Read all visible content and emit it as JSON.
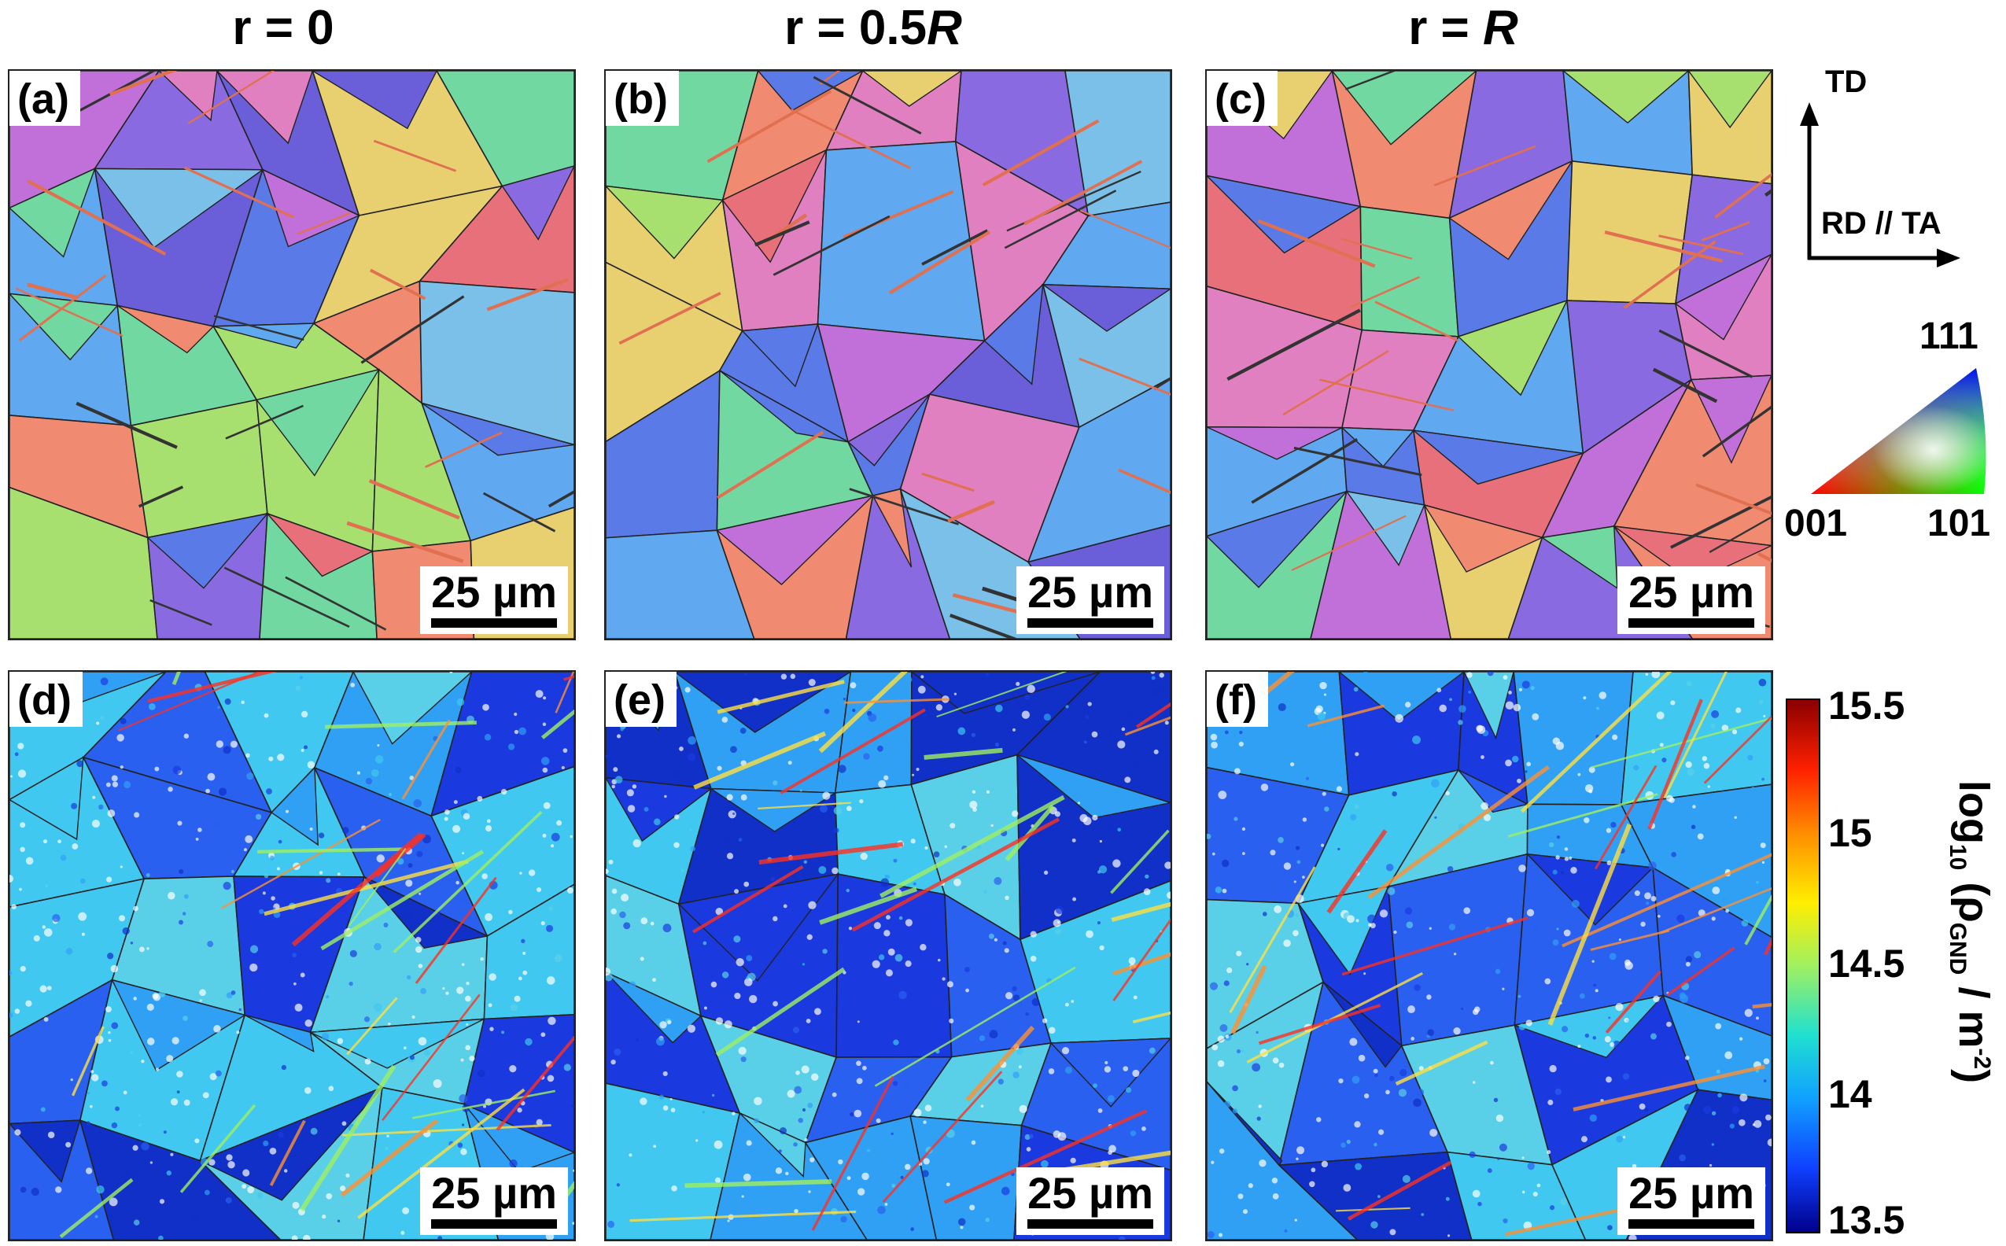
{
  "columns": {
    "c1": {
      "prefix": "r = 0",
      "italic": ""
    },
    "c2": {
      "prefix": "r = 0.5",
      "italic": "R"
    },
    "c3": {
      "prefix": "r = ",
      "italic": "R"
    }
  },
  "panels": [
    {
      "label": "(a)",
      "scale": "25 µm",
      "kind": "ipf",
      "seed": 11
    },
    {
      "label": "(b)",
      "scale": "25 µm",
      "kind": "ipf",
      "seed": 23
    },
    {
      "label": "(c)",
      "scale": "25 µm",
      "kind": "ipf",
      "seed": 37
    },
    {
      "label": "(d)",
      "scale": "25 µm",
      "kind": "gnd",
      "seed": 41
    },
    {
      "label": "(e)",
      "scale": "25 µm",
      "kind": "gnd",
      "seed": 53
    },
    {
      "label": "(f)",
      "scale": "25 µm",
      "kind": "gnd",
      "seed": 67
    }
  ],
  "axes": {
    "td": "TD",
    "rd": "RD // TA"
  },
  "ipf_key": {
    "top": "111",
    "left": "001",
    "right": "101"
  },
  "colorbar": {
    "ticks": [
      "15.5",
      "15",
      "14.5",
      "14",
      "13.5"
    ],
    "title_main": "log",
    "title_sub1": "10",
    "title_mid": " (ρ",
    "title_sub2": "GND",
    "title_end": " / m",
    "title_sup": "-2",
    "title_close": ")",
    "colors": [
      "#8b0000",
      "#ff2000",
      "#ff8c00",
      "#ffee00",
      "#a0f060",
      "#20e0d0",
      "#10a0ff",
      "#1040ff",
      "#00008b"
    ]
  },
  "colors": {
    "ipf": [
      "#e8707a",
      "#f08a70",
      "#6a5fd8",
      "#8a6ae0",
      "#5a7ae8",
      "#c070d8",
      "#e080c0",
      "#a8e070",
      "#70d8a0",
      "#7ac0e8",
      "#e8d070",
      "#60a8f0"
    ],
    "gnd": [
      "#1a3adf",
      "#2a60f0",
      "#30a0f5",
      "#40c8f0",
      "#1030c8",
      "#5ad0e8"
    ],
    "hot": [
      "#ffe040",
      "#ff9030",
      "#ff3020",
      "#a0f060"
    ]
  }
}
